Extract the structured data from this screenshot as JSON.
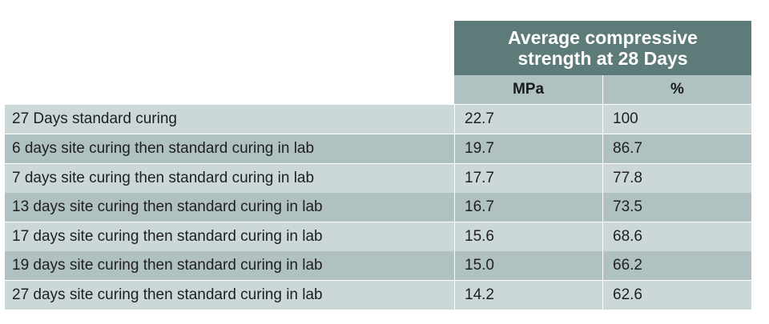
{
  "header": {
    "title_line1": "Average compressive",
    "title_line2": "strength at 28 Days",
    "col_mpa": "MPa",
    "col_pct": "%"
  },
  "rows": [
    {
      "label": "27 Days standard curing",
      "mpa": "22.7",
      "pct": "100"
    },
    {
      "label": "6 days site curing then standard curing in lab",
      "mpa": "19.7",
      "pct": "86.7"
    },
    {
      "label": "7 days site curing then standard curing in lab",
      "mpa": "17.7",
      "pct": "77.8"
    },
    {
      "label": "13 days site curing then standard curing in lab",
      "mpa": "16.7",
      "pct": "73.5"
    },
    {
      "label": "17 days site curing then standard curing in lab",
      "mpa": "15.6",
      "pct": "68.6"
    },
    {
      "label": "19 days site curing then standard curing in lab",
      "mpa": "15.0",
      "pct": "66.2"
    },
    {
      "label": "27 days site curing then standard curing in lab",
      "mpa": "14.2",
      "pct": "62.6"
    }
  ]
}
